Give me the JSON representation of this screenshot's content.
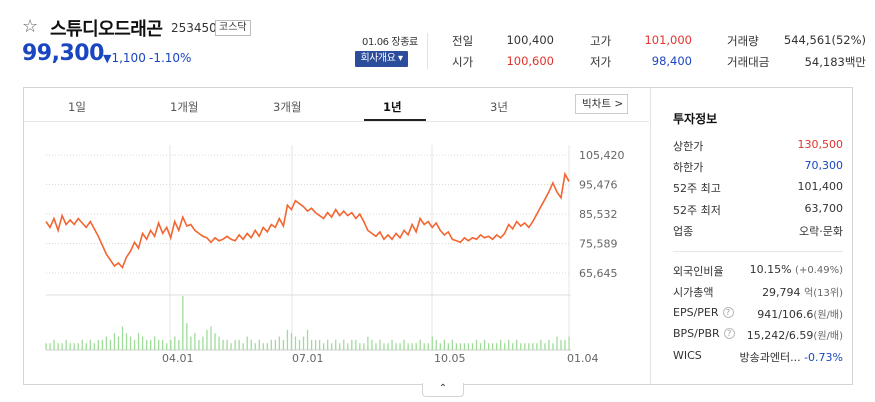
{
  "header": {
    "name": "스튜디오드래곤",
    "code": "253450",
    "market": "코스닥",
    "price": "99,300",
    "change_arrow": "▼",
    "change": "1,100",
    "change_pct": "-1.10%",
    "closing_note": "01.06 장종료",
    "company_button": "회사개요 ▾"
  },
  "quotes": [
    {
      "label": "전일",
      "value": "100,400",
      "color": "#333333"
    },
    {
      "label": "고가",
      "value": "101,000",
      "color": "#e2322c"
    },
    {
      "label": "거래량",
      "value": "544,561(52%)",
      "color": "#333333"
    },
    {
      "label": "시가",
      "value": "100,600",
      "color": "#e2322c"
    },
    {
      "label": "저가",
      "value": "98,400",
      "color": "#1a46c0"
    },
    {
      "label": "거래대금",
      "value": "54,183백만",
      "color": "#333333"
    }
  ],
  "tabs": [
    "1일",
    "1개월",
    "3개월",
    "1년",
    "3년"
  ],
  "active_tab": "1년",
  "big_chart_button": "빅차트 >",
  "chart_data": {
    "type": "line",
    "y_ticks": [
      "105,420",
      "95,476",
      "85,532",
      "75,589",
      "65,645"
    ],
    "ylim": [
      65645,
      105420
    ],
    "x_ticks": [
      "04.01",
      "07.01",
      "10.05",
      "01.04"
    ],
    "line_color": "#f26530",
    "values": [
      83000,
      81000,
      84000,
      80000,
      85000,
      82000,
      83500,
      82000,
      84000,
      82500,
      81000,
      83000,
      80500,
      78000,
      75000,
      72000,
      70000,
      68000,
      69000,
      67500,
      71000,
      73000,
      76000,
      74000,
      79000,
      77000,
      80000,
      78000,
      82500,
      79000,
      81000,
      77500,
      83000,
      80000,
      84500,
      81500,
      82000,
      80000,
      79000,
      78000,
      77500,
      76000,
      77500,
      76500,
      77000,
      78000,
      77000,
      76500,
      78500,
      77000,
      79000,
      77500,
      80000,
      78000,
      81000,
      79500,
      82000,
      81000,
      84000,
      81500,
      88500,
      87000,
      90000,
      89000,
      88000,
      86500,
      87500,
      86000,
      85000,
      84000,
      86000,
      84500,
      87000,
      85000,
      86500,
      85000,
      86000,
      84000,
      85500,
      83000,
      80000,
      79000,
      78000,
      79500,
      77000,
      78500,
      77000,
      79000,
      77500,
      80000,
      78500,
      82000,
      79500,
      84000,
      82000,
      83000,
      81000,
      82500,
      80000,
      78500,
      79500,
      77000,
      76500,
      76000,
      77500,
      76500,
      77500,
      77000,
      78500,
      77500,
      78000,
      77000,
      78500,
      77500,
      79000,
      82000,
      80500,
      83000,
      81500,
      82500,
      81000,
      83000,
      85500,
      88000,
      90500,
      93000,
      96000,
      93000,
      91000,
      99000,
      96500
    ],
    "volumes": [
      2,
      2,
      3,
      2,
      2,
      3,
      2,
      2,
      2,
      3,
      2,
      3,
      2,
      3,
      3,
      4,
      3,
      5,
      4,
      7,
      5,
      4,
      3,
      5,
      4,
      3,
      3,
      4,
      3,
      3,
      2,
      3,
      4,
      3,
      16,
      8,
      4,
      5,
      3,
      4,
      6,
      7,
      5,
      4,
      3,
      3,
      2,
      3,
      3,
      2,
      4,
      3,
      2,
      3,
      2,
      2,
      3,
      3,
      4,
      3,
      6,
      5,
      4,
      3,
      4,
      6,
      3,
      3,
      3,
      2,
      3,
      2,
      3,
      2,
      3,
      2,
      3,
      3,
      2,
      2,
      4,
      3,
      2,
      3,
      2,
      2,
      3,
      2,
      2,
      3,
      2,
      2,
      2,
      3,
      2,
      2,
      4,
      3,
      2,
      3,
      2,
      3,
      2,
      2,
      2,
      2,
      2,
      3,
      2,
      3,
      2,
      2,
      2,
      3,
      2,
      3,
      2,
      3,
      2,
      2,
      2,
      2,
      2,
      3,
      2,
      3,
      2,
      4,
      3,
      3,
      4
    ]
  },
  "invest_info": {
    "title": "투자정보",
    "rows": [
      {
        "label": "상한가",
        "value": "130,500",
        "color": "#e2322c"
      },
      {
        "label": "하한가",
        "value": "70,300",
        "color": "#1a46c0"
      },
      {
        "label": "52주 최고",
        "value": "101,400",
        "color": "#333333"
      },
      {
        "label": "52주 최저",
        "value": "63,700",
        "color": "#333333"
      },
      {
        "label": "업종",
        "value": "오락·문화",
        "color": "#333333"
      }
    ],
    "rows2": [
      {
        "label": "외국인비율",
        "value": "10.15%",
        "extra": "(+0.49%)"
      },
      {
        "label": "시가총액",
        "value": "29,794",
        "extra": "억(13위)"
      },
      {
        "label": "EPS/PER",
        "value": "941/106.6",
        "extra": "(원/배)",
        "help": "?"
      },
      {
        "label": "BPS/PBR",
        "value": "15,242/6.59",
        "extra": "(원/배)",
        "help": "?"
      },
      {
        "label": "WICS",
        "value": "방송과엔터...",
        "extra": "-0.73%"
      }
    ]
  },
  "collapse_icon": "⌃"
}
